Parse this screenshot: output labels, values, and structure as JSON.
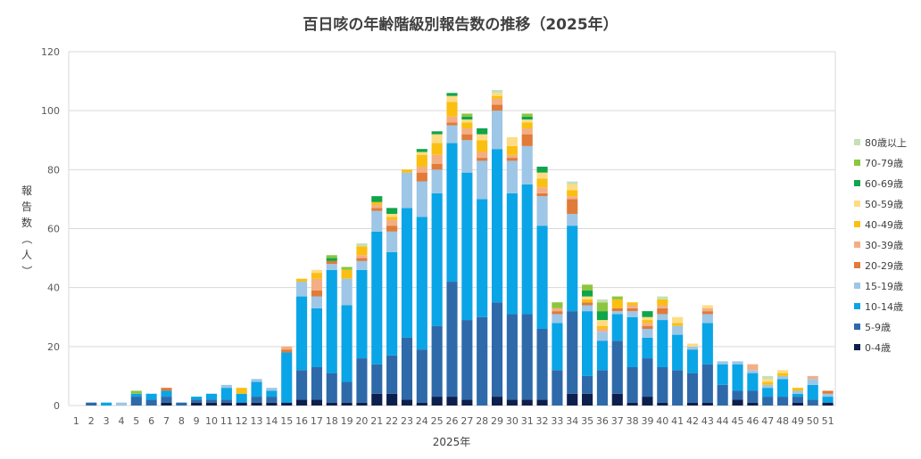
{
  "chart_data": {
    "type": "bar",
    "stacked": true,
    "title": "百日咳の年齢階級別報告数の推移（2025年）",
    "xlabel": "2025年",
    "ylabel": "報告数（人）",
    "ylim": [
      0,
      120
    ],
    "yticks": [
      0,
      20,
      40,
      60,
      80,
      100,
      120
    ],
    "grid": true,
    "legend_position": "right",
    "categories": [
      "1",
      "2",
      "3",
      "4",
      "5",
      "6",
      "7",
      "8",
      "9",
      "10",
      "11",
      "12",
      "13",
      "14",
      "15",
      "16",
      "17",
      "18",
      "19",
      "20",
      "21",
      "22",
      "23",
      "24",
      "25",
      "26",
      "27",
      "28",
      "29",
      "30",
      "31",
      "32",
      "33",
      "34",
      "35",
      "36",
      "37",
      "38",
      "39",
      "40",
      "41",
      "42",
      "43",
      "44",
      "45",
      "46",
      "47",
      "48",
      "49",
      "50",
      "51"
    ],
    "series": [
      {
        "name": "0-4歳",
        "color": "#0d1f4d",
        "values": [
          0,
          0,
          0,
          0,
          0,
          0,
          1,
          0,
          1,
          1,
          1,
          1,
          1,
          1,
          1,
          2,
          2,
          1,
          1,
          1,
          4,
          4,
          2,
          1,
          3,
          3,
          2,
          0,
          3,
          2,
          2,
          2,
          0,
          4,
          4,
          0,
          4,
          1,
          3,
          1,
          0,
          1,
          1,
          0,
          2,
          1,
          0,
          0,
          1,
          0,
          1
        ]
      },
      {
        "name": "5-9歳",
        "color": "#2e6aaa",
        "values": [
          0,
          1,
          0,
          0,
          3,
          2,
          2,
          1,
          1,
          1,
          1,
          0,
          2,
          2,
          0,
          10,
          11,
          10,
          7,
          15,
          10,
          13,
          21,
          18,
          24,
          39,
          27,
          30,
          32,
          29,
          29,
          24,
          12,
          28,
          6,
          12,
          18,
          12,
          13,
          12,
          12,
          10,
          13,
          7,
          3,
          4,
          3,
          3,
          2,
          2,
          0
        ]
      },
      {
        "name": "10-14歳",
        "color": "#0aa5e6",
        "values": [
          0,
          0,
          1,
          0,
          1,
          2,
          2,
          0,
          1,
          2,
          4,
          3,
          5,
          2,
          17,
          25,
          20,
          35,
          26,
          30,
          45,
          35,
          44,
          45,
          45,
          47,
          50,
          40,
          52,
          41,
          44,
          35,
          16,
          29,
          22,
          10,
          9,
          17,
          7,
          16,
          12,
          8,
          14,
          7,
          9,
          6,
          3,
          6,
          1,
          5,
          2
        ]
      },
      {
        "name": "15-19歳",
        "color": "#9ec6e6",
        "values": [
          0,
          0,
          0,
          1,
          0,
          0,
          0,
          0,
          0,
          0,
          1,
          0,
          1,
          1,
          0,
          5,
          4,
          2,
          9,
          3,
          7,
          7,
          12,
          12,
          8,
          6,
          11,
          13,
          13,
          11,
          13,
          10,
          3,
          4,
          2,
          3,
          1,
          2,
          3,
          2,
          3,
          1,
          3,
          1,
          1,
          1,
          1,
          1,
          1,
          2,
          1
        ]
      },
      {
        "name": "20-29歳",
        "color": "#e07b39",
        "values": [
          0,
          0,
          0,
          0,
          0,
          0,
          1,
          0,
          0,
          0,
          0,
          0,
          0,
          0,
          1,
          0,
          2,
          1,
          0,
          1,
          1,
          2,
          0,
          3,
          2,
          1,
          2,
          1,
          2,
          1,
          4,
          1,
          1,
          5,
          1,
          0,
          1,
          1,
          1,
          2,
          0,
          0,
          1,
          0,
          0,
          0,
          0,
          0,
          0,
          0,
          1
        ]
      },
      {
        "name": "30-39歳",
        "color": "#f4ae84",
        "values": [
          0,
          0,
          0,
          0,
          0,
          0,
          0,
          0,
          0,
          0,
          0,
          0,
          0,
          0,
          1,
          0,
          4,
          0,
          0,
          1,
          1,
          2,
          0,
          2,
          3,
          2,
          2,
          2,
          2,
          1,
          2,
          2,
          1,
          1,
          0,
          1,
          0,
          1,
          1,
          1,
          0,
          0,
          1,
          0,
          0,
          2,
          0,
          0,
          0,
          1,
          0
        ]
      },
      {
        "name": "40-49歳",
        "color": "#fbbf12",
        "values": [
          0,
          0,
          0,
          0,
          0,
          0,
          0,
          0,
          0,
          0,
          0,
          2,
          0,
          0,
          0,
          1,
          2,
          0,
          3,
          3,
          1,
          1,
          1,
          4,
          4,
          5,
          2,
          4,
          1,
          3,
          2,
          3,
          0,
          2,
          1,
          1,
          3,
          1,
          1,
          2,
          1,
          0,
          0,
          0,
          0,
          0,
          1,
          1,
          1,
          0,
          0
        ]
      },
      {
        "name": "50-59歳",
        "color": "#fddc84",
        "values": [
          0,
          0,
          0,
          0,
          0,
          0,
          0,
          0,
          0,
          0,
          0,
          0,
          0,
          0,
          0,
          0,
          1,
          0,
          0,
          0,
          0,
          1,
          0,
          1,
          3,
          2,
          1,
          2,
          1,
          3,
          1,
          2,
          0,
          2,
          1,
          2,
          0,
          0,
          1,
          0,
          2,
          1,
          1,
          0,
          0,
          0,
          1,
          1,
          0,
          0,
          0
        ]
      },
      {
        "name": "60-69歳",
        "color": "#0fa54b",
        "values": [
          0,
          0,
          0,
          0,
          0,
          0,
          0,
          0,
          0,
          0,
          0,
          0,
          0,
          0,
          0,
          0,
          0,
          1,
          0,
          0,
          2,
          2,
          0,
          1,
          1,
          1,
          1,
          2,
          0,
          0,
          1,
          2,
          0,
          0,
          2,
          3,
          0,
          0,
          2,
          0,
          0,
          0,
          0,
          0,
          0,
          0,
          0,
          0,
          0,
          0,
          0
        ]
      },
      {
        "name": "70-79歳",
        "color": "#8cc63f",
        "values": [
          0,
          0,
          0,
          0,
          1,
          0,
          0,
          0,
          0,
          0,
          0,
          0,
          0,
          0,
          0,
          0,
          0,
          1,
          1,
          0,
          0,
          0,
          0,
          0,
          0,
          0,
          1,
          0,
          0,
          0,
          1,
          0,
          2,
          0,
          2,
          3,
          1,
          0,
          0,
          0,
          0,
          0,
          0,
          0,
          0,
          0,
          0,
          0,
          0,
          0,
          0
        ]
      },
      {
        "name": "80歳以上",
        "color": "#c5e0b4",
        "values": [
          0,
          0,
          0,
          0,
          0,
          0,
          0,
          0,
          0,
          0,
          0,
          0,
          0,
          0,
          0,
          0,
          0,
          0,
          0,
          1,
          0,
          0,
          0,
          0,
          0,
          0,
          0,
          0,
          1,
          0,
          0,
          0,
          0,
          1,
          0,
          1,
          0,
          0,
          0,
          1,
          0,
          0,
          0,
          0,
          0,
          0,
          1,
          0,
          0,
          0,
          0
        ]
      }
    ]
  }
}
